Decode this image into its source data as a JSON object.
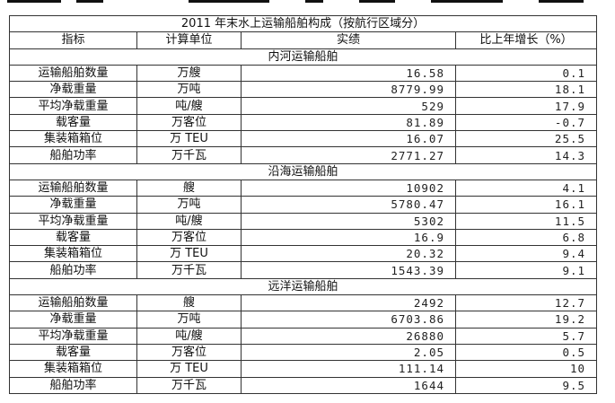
{
  "title": "2011 年末水上运输船舶构成（按航行区域分）",
  "headers": [
    "指标",
    "计算单位",
    "实绩",
    "比上年增长（%）"
  ],
  "sections": [
    {
      "name": "内河运输船舶",
      "rows": [
        [
          "运输船舶数量",
          "万艘",
          "16.58",
          "0.1"
        ],
        [
          "净载重量",
          "万吨",
          "8779.99",
          "18.1"
        ],
        [
          "平均净载重量",
          "吨/艘",
          "529",
          "17.9"
        ],
        [
          "载客量",
          "万客位",
          "81.89",
          "-0.7"
        ],
        [
          "集装箱箱位",
          "万 TEU",
          "16.07",
          "25.5"
        ],
        [
          "船舶功率",
          "万千瓦",
          "2771.27",
          "14.3"
        ]
      ]
    },
    {
      "name": "沿海运输船舶",
      "rows": [
        [
          "运输船舶数量",
          "艘",
          "10902",
          "4.1"
        ],
        [
          "净载重量",
          "万吨",
          "5780.47",
          "16.1"
        ],
        [
          "平均净载重量",
          "吨/艘",
          "5302",
          "11.5"
        ],
        [
          "载客量",
          "万客位",
          "16.9",
          "6.8"
        ],
        [
          "集装箱箱位",
          "万 TEU",
          "20.32",
          "9.4"
        ],
        [
          "船舶功率",
          "万千瓦",
          "1543.39",
          "9.1"
        ]
      ]
    },
    {
      "name": "远洋运输船舶",
      "rows": [
        [
          "运输船舶数量",
          "艘",
          "2492",
          "12.7"
        ],
        [
          "净载重量",
          "万吨",
          "6703.86",
          "19.2"
        ],
        [
          "平均净载重量",
          "吨/艘",
          "26880",
          "5.7"
        ],
        [
          "载客量",
          "万客位",
          "2.05",
          "0.5"
        ],
        [
          "集装箱箱位",
          "万 TEU",
          "111.14",
          "10"
        ],
        [
          "船舶功率",
          "万千瓦",
          "1644",
          "9.5"
        ]
      ]
    }
  ]
}
